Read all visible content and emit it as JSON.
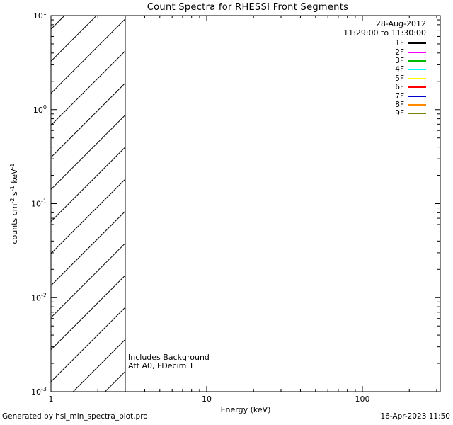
{
  "chart_data": {
    "type": "line",
    "title": "Count Spectra for RHESSI Front Segments",
    "xlabel": "Energy (keV)",
    "ylabel": "counts cm^-2 s^-1 keV^-1",
    "ylabel_parts": [
      {
        "t": "counts cm"
      },
      {
        "s": "-2"
      },
      {
        "t": " s"
      },
      {
        "s": "-1"
      },
      {
        "t": " keV"
      },
      {
        "s": "-1"
      }
    ],
    "xscale": "log",
    "yscale": "log",
    "xlim": [
      1,
      316.2
    ],
    "ylim": [
      0.001,
      10
    ],
    "x_major_ticks": [
      1,
      10,
      100
    ],
    "x_tick_labels": [
      "1",
      "10",
      "100"
    ],
    "y_major_ticks": [
      0.001,
      0.01,
      0.1,
      1,
      10
    ],
    "y_tick_exponents": [
      -3,
      -2,
      -1,
      0,
      1
    ],
    "grid": false,
    "legend_position": "top-right",
    "series": [],
    "hatched_region": {
      "x_start": 1,
      "x_end": 3,
      "hatch_angle_deg": 45
    }
  },
  "header": {
    "date": "28-Aug-2012",
    "time_range": "11:29:00 to 11:30:00"
  },
  "legend": {
    "entries": [
      {
        "label": "1F",
        "color": "#000000"
      },
      {
        "label": "2F",
        "color": "#ff00ff"
      },
      {
        "label": "3F",
        "color": "#00bb00"
      },
      {
        "label": "4F",
        "color": "#00ffff"
      },
      {
        "label": "5F",
        "color": "#ffff00"
      },
      {
        "label": "6F",
        "color": "#ff0000"
      },
      {
        "label": "7F",
        "color": "#0000cc"
      },
      {
        "label": "8F",
        "color": "#ff8800"
      },
      {
        "label": "9F",
        "color": "#7f7f00"
      }
    ]
  },
  "annotations": {
    "background_note": "Includes Background",
    "attenuator_note": "Att A0, FDecim 1"
  },
  "footer": {
    "generated_by": "Generated by hsi_min_spectra_plot.pro",
    "timestamp": "16-Apr-2023 11:50"
  }
}
